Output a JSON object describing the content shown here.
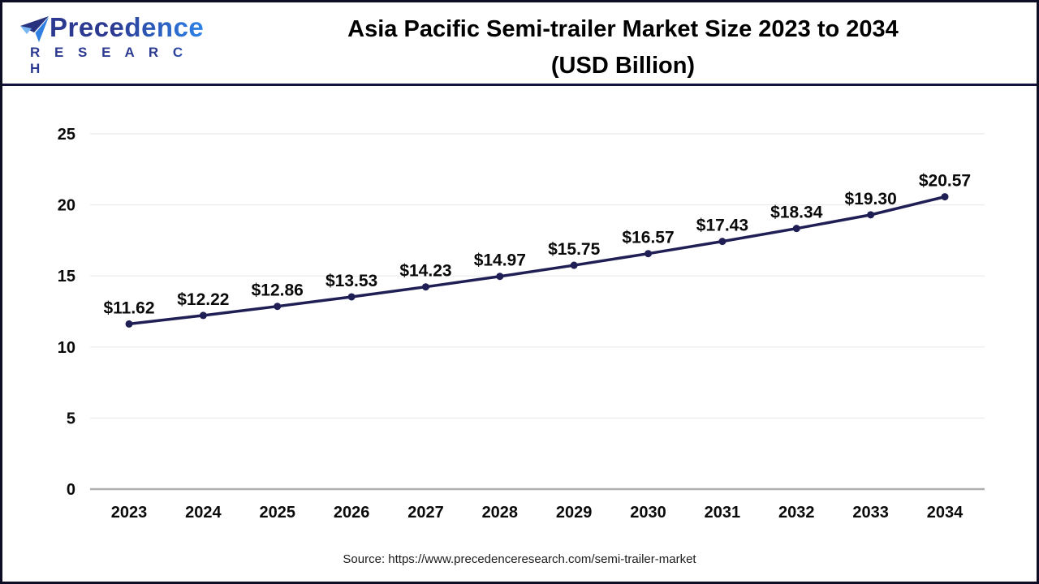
{
  "header": {
    "logo": {
      "brand": "Precedence",
      "subtitle": "R E S E A R C H"
    },
    "title_line1": "Asia Pacific Semi-trailer Market Size 2023 to 2034",
    "title_line2": "(USD Billion)"
  },
  "footer": {
    "source": "Source: https://www.precedenceresearch.com/semi-trailer-market"
  },
  "colors": {
    "line": "#1f1e55",
    "marker": "#1f1e55",
    "grid": "#ebebeb",
    "zero_axis": "#b0b0b0",
    "label_text": "#0a0a0a",
    "header_separator": "#14123f",
    "frame_border": "#0d0d24",
    "logo_navy": "#2b3990",
    "logo_blue": "#2e82e8"
  },
  "chart_data": {
    "type": "line",
    "title": "Asia Pacific Semi-trailer Market Size 2023 to 2034 (USD Billion)",
    "unit": "USD Billion",
    "categories": [
      "2023",
      "2024",
      "2025",
      "2026",
      "2027",
      "2028",
      "2029",
      "2030",
      "2031",
      "2032",
      "2033",
      "2034"
    ],
    "values": [
      11.62,
      12.22,
      12.86,
      13.53,
      14.23,
      14.97,
      15.75,
      16.57,
      17.43,
      18.34,
      19.3,
      20.57
    ],
    "point_labels": [
      "$11.62",
      "$12.22",
      "$12.86",
      "$13.53",
      "$14.23",
      "$14.97",
      "$15.75",
      "$16.57",
      "$17.43",
      "$18.34",
      "$19.30",
      "$20.57"
    ],
    "xlabel": "",
    "ylabel": "",
    "ylim": [
      0,
      25
    ],
    "yticks": [
      0,
      5,
      10,
      15,
      20,
      25
    ],
    "grid": true,
    "legend": false
  }
}
